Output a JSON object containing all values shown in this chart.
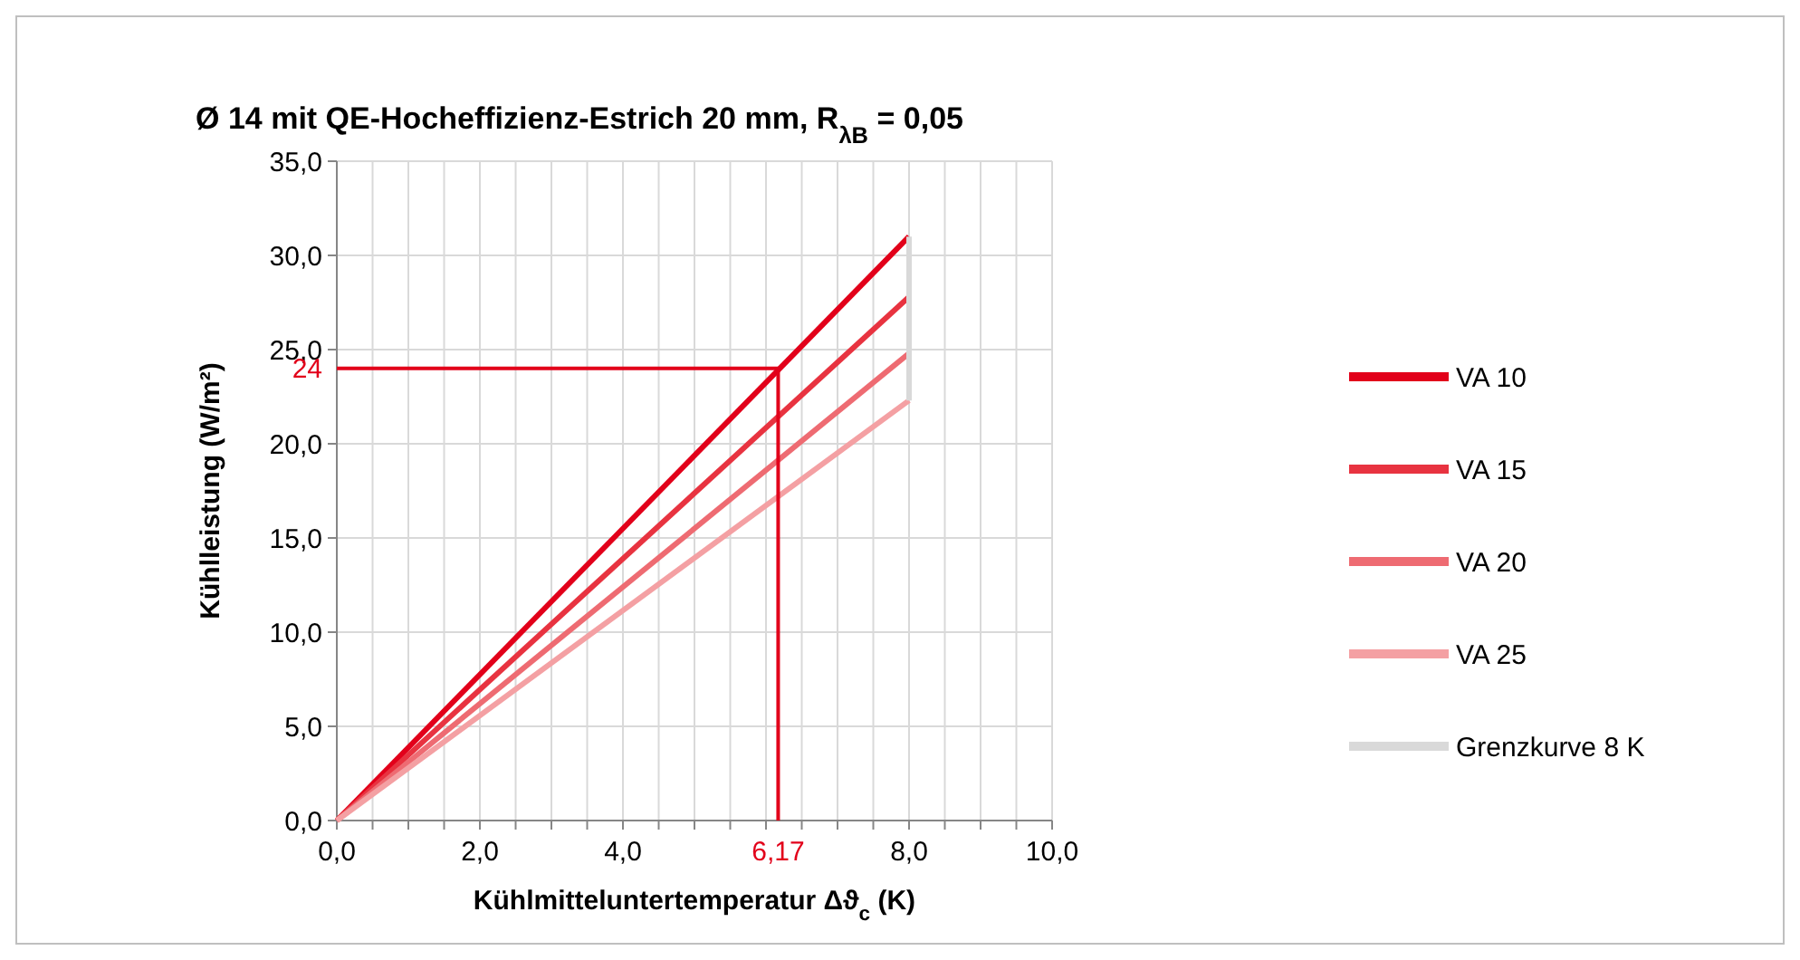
{
  "chart_data": {
    "type": "line",
    "title": "Ø 14 mit QE-Hocheffizienz-Estrich 20 mm, R$_{λB}$ = 0,05",
    "xlabel": "Kühlmitteluntertemperatur Δϑ$_{c}$ (K)",
    "ylabel": "Kühlleistung (W/m²)",
    "xlim": [
      0,
      10
    ],
    "ylim": [
      0,
      35
    ],
    "xticks": [
      {
        "value": 0,
        "label": "0,0"
      },
      {
        "value": 0.5,
        "label": null
      },
      {
        "value": 1,
        "label": null
      },
      {
        "value": 1.5,
        "label": null
      },
      {
        "value": 2,
        "label": "2,0"
      },
      {
        "value": 2.5,
        "label": null
      },
      {
        "value": 3,
        "label": null
      },
      {
        "value": 3.5,
        "label": null
      },
      {
        "value": 4,
        "label": "4,0"
      },
      {
        "value": 4.5,
        "label": null
      },
      {
        "value": 5,
        "label": null
      },
      {
        "value": 5.5,
        "label": null
      },
      {
        "value": 6,
        "label": null
      },
      {
        "value": 6.5,
        "label": null
      },
      {
        "value": 7,
        "label": null
      },
      {
        "value": 7.5,
        "label": null
      },
      {
        "value": 8,
        "label": "8,0"
      },
      {
        "value": 8.5,
        "label": null
      },
      {
        "value": 9,
        "label": null
      },
      {
        "value": 9.5,
        "label": null
      },
      {
        "value": 10,
        "label": "10,0"
      }
    ],
    "yticks": [
      {
        "value": 0,
        "label": "0,0"
      },
      {
        "value": 5,
        "label": "5,0"
      },
      {
        "value": 10,
        "label": "10,0"
      },
      {
        "value": 15,
        "label": "15,0"
      },
      {
        "value": 20,
        "label": "20,0"
      },
      {
        "value": 25,
        "label": "25,0"
      },
      {
        "value": 30,
        "label": "30,0"
      },
      {
        "value": 35,
        "label": "35,0"
      }
    ],
    "grid": true,
    "legend": "right",
    "marker": "none",
    "line_style": "solid",
    "series": [
      {
        "name": "VA 10",
        "color": "#e2001a",
        "x": [
          0,
          8
        ],
        "values": [
          0,
          31.0
        ]
      },
      {
        "name": "VA 15",
        "color": "#e83340",
        "x": [
          0,
          8
        ],
        "values": [
          0,
          27.8
        ]
      },
      {
        "name": "VA 20",
        "color": "#ee6b72",
        "x": [
          0,
          8
        ],
        "values": [
          0,
          24.8
        ]
      },
      {
        "name": "VA 25",
        "color": "#f4a0a3",
        "x": [
          0,
          8
        ],
        "values": [
          0,
          22.3
        ]
      },
      {
        "name": "Grenzkurve 8 K",
        "color": "#d9d9d9",
        "x": [
          8,
          8
        ],
        "values": [
          22.3,
          31.0
        ]
      },
      {
        "color": "#e2001a",
        "x": [
          0,
          6.17,
          6.17
        ],
        "values": [
          24,
          24,
          0
        ]
      }
    ],
    "annotations": [
      {
        "text": "24",
        "x": 0,
        "y": 24
      },
      {
        "text": "6,17",
        "x": 6.17,
        "y": 0
      }
    ]
  }
}
